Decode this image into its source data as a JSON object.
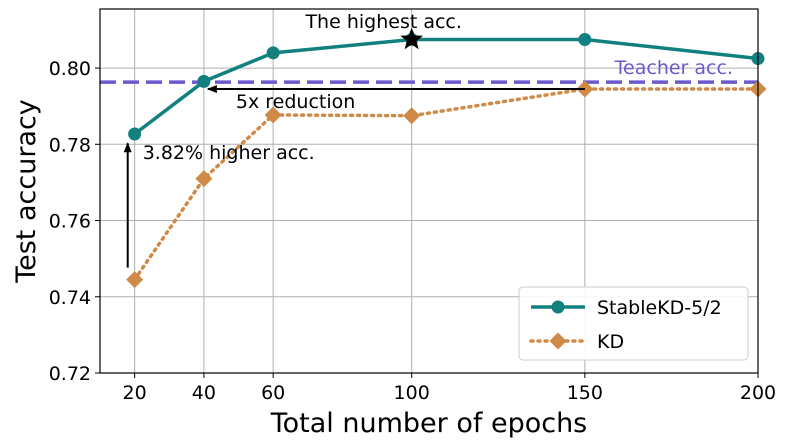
{
  "chart_data": {
    "type": "line",
    "title": "",
    "xlabel": "Total number of epochs",
    "ylabel": "Test accuracy",
    "x": [
      20,
      40,
      60,
      100,
      150,
      200
    ],
    "xticks": [
      20,
      40,
      60,
      100,
      150,
      200
    ],
    "xtick_labels": [
      "20",
      "40",
      "60",
      "100",
      "150",
      "200"
    ],
    "xlim": [
      10,
      200
    ],
    "yticks": [
      0.72,
      0.74,
      0.76,
      0.78,
      0.8
    ],
    "ytick_labels": [
      "0.72",
      "0.74",
      "0.76",
      "0.78",
      "0.80"
    ],
    "ylim": [
      0.72,
      0.8155
    ],
    "grid": true,
    "legend_position": "bottom-right",
    "series": [
      {
        "name": "StableKD-5/2",
        "values": [
          0.7827,
          0.7965,
          0.804,
          0.8075,
          0.8075,
          0.8025
        ],
        "color": "#138080",
        "marker": "circle",
        "line_style": "solid"
      },
      {
        "name": "KD",
        "values": [
          0.7445,
          0.771,
          0.7877,
          0.7875,
          0.7945,
          0.7945
        ],
        "color": "#d08a48",
        "marker": "diamond",
        "line_style": "dotted"
      }
    ],
    "reference_line": {
      "label": "Teacher acc.",
      "value": 0.7963,
      "color": "#6a5acd",
      "line_style": "dashed"
    },
    "highlight": {
      "label": "The highest acc.",
      "x": 100,
      "y": 0.8075,
      "marker": "star"
    },
    "annotations": [
      {
        "name": "reduction",
        "text": "5x reduction",
        "from": [
          150,
          0.7945
        ],
        "to": [
          40,
          0.7945
        ]
      },
      {
        "name": "higher-acc",
        "text": "3.82% higher acc.",
        "from": [
          18,
          0.7445
        ],
        "to": [
          18,
          0.7808
        ]
      }
    ]
  }
}
